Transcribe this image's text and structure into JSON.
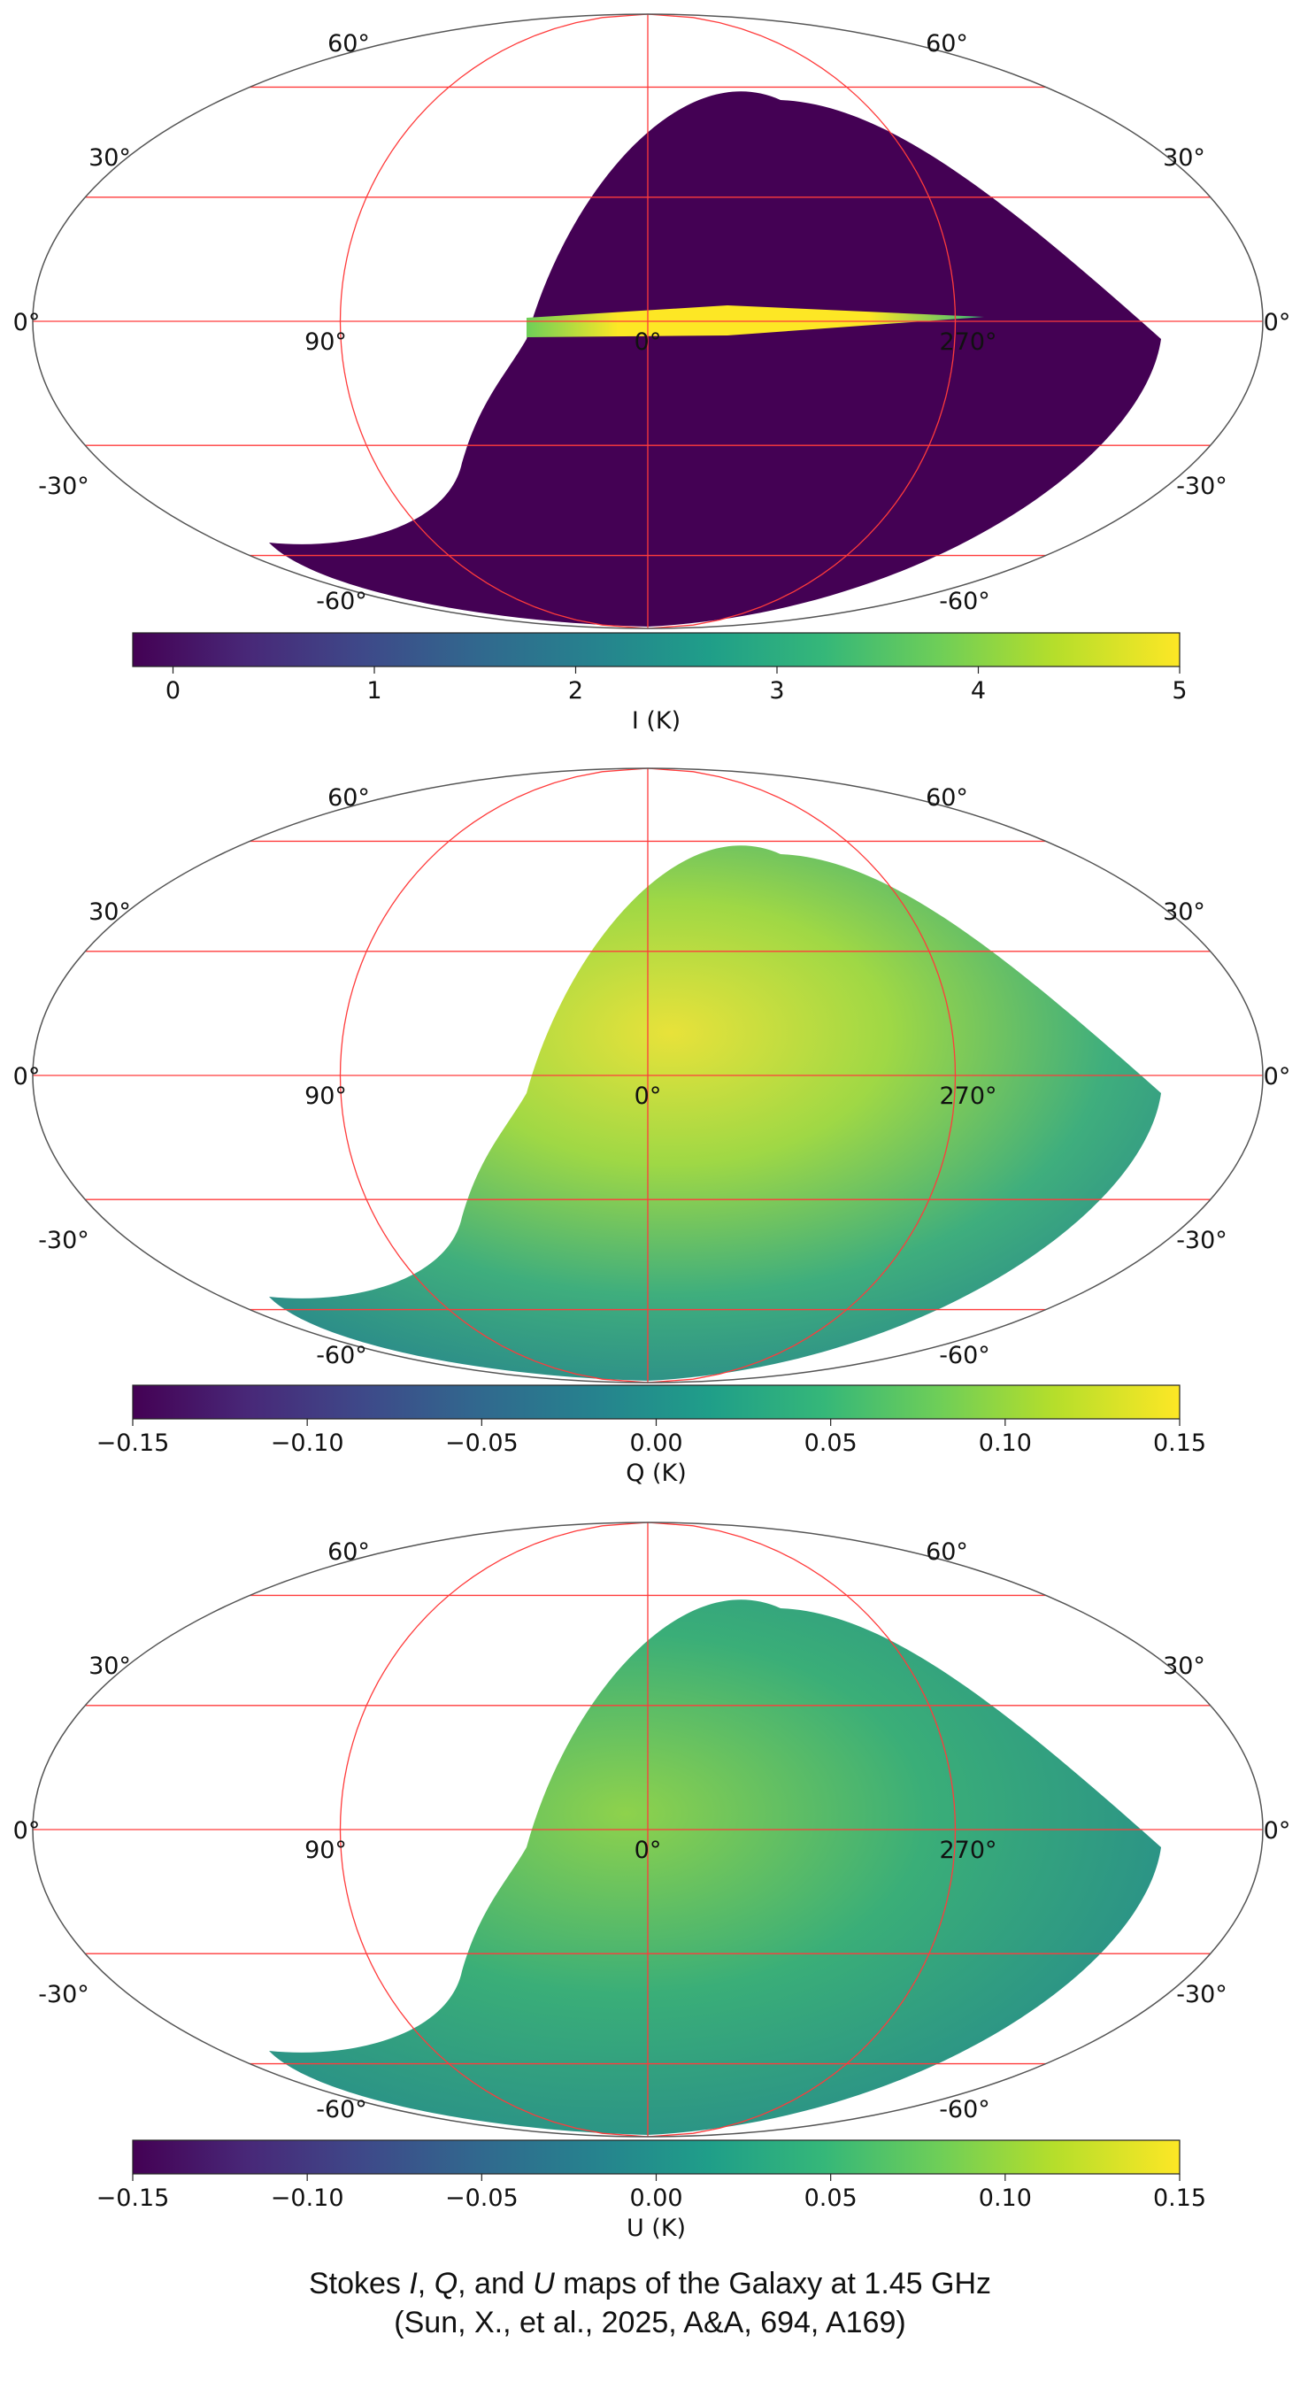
{
  "panels": [
    {
      "id": "I",
      "lat_labels": {
        "p60": "60°",
        "p30": "30°",
        "zero": "0°",
        "m30": "-30°",
        "m60": "-60°"
      },
      "lon_labels": {
        "l90": "90°",
        "l0": "0°",
        "l270": "270°"
      },
      "colorbar": {
        "ticks": [
          "0",
          "1",
          "2",
          "3",
          "4",
          "5"
        ],
        "label": "I (K)",
        "min": -0.2,
        "max": 5.0
      }
    },
    {
      "id": "Q",
      "lat_labels": {
        "p60": "60°",
        "p30": "30°",
        "zero": "0°",
        "m30": "-30°",
        "m60": "-60°"
      },
      "lon_labels": {
        "l90": "90°",
        "l0": "0°",
        "l270": "270°"
      },
      "colorbar": {
        "ticks": [
          "−0.15",
          "−0.10",
          "−0.05",
          "0.00",
          "0.05",
          "0.10",
          "0.15"
        ],
        "label": "Q (K)",
        "min": -0.15,
        "max": 0.15
      }
    },
    {
      "id": "U",
      "lat_labels": {
        "p60": "60°",
        "p30": "30°",
        "zero": "0°",
        "m30": "-30°",
        "m60": "-60°"
      },
      "lon_labels": {
        "l90": "90°",
        "l0": "0°",
        "l270": "270°"
      },
      "colorbar": {
        "ticks": [
          "−0.15",
          "−0.10",
          "−0.05",
          "0.00",
          "0.05",
          "0.10",
          "0.15"
        ],
        "label": "U (K)",
        "min": -0.15,
        "max": 0.15
      }
    }
  ],
  "caption": {
    "line1_prefix": "Stokes ",
    "line1_i": "I",
    "line1_sep1": ", ",
    "line1_q": "Q",
    "line1_sep2": ", and ",
    "line1_u": "U",
    "line1_suffix": " maps of the Galaxy at 1.45 GHz",
    "line2": "(Sun, X., et al., 2025, A&A, 694, A169)"
  },
  "colors": {
    "grid": "#ff3b3b",
    "frame": "#555555",
    "viridis": [
      "#440154",
      "#482878",
      "#3e4989",
      "#31688e",
      "#26828e",
      "#1f9e89",
      "#35b779",
      "#6ece58",
      "#b5de2b",
      "#fde725"
    ]
  }
}
